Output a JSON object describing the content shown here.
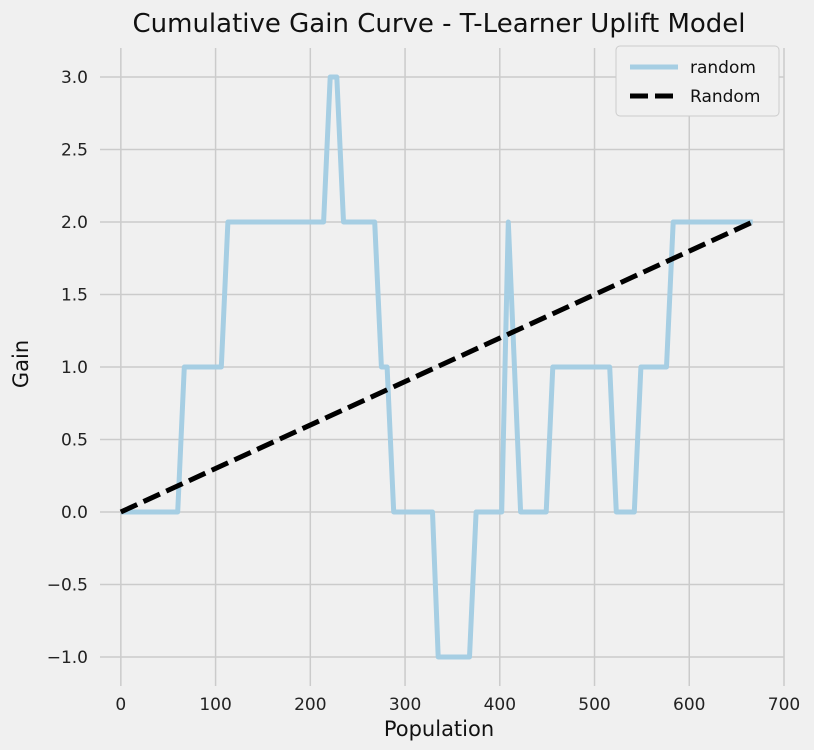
{
  "chart_data": {
    "type": "line",
    "title": "Cumulative Gain Curve - T-Learner Uplift Model",
    "xlabel": "Population",
    "ylabel": "Gain",
    "xlim": [
      -22,
      700
    ],
    "ylim": [
      -1.2,
      3.2
    ],
    "xticks": [
      0,
      100,
      200,
      300,
      400,
      500,
      600,
      700
    ],
    "yticks": [
      -1.0,
      -0.5,
      0.0,
      0.5,
      1.0,
      1.5,
      2.0,
      2.5,
      3.0
    ],
    "xtick_labels": [
      "0",
      "100",
      "200",
      "300",
      "400",
      "500",
      "600",
      "700"
    ],
    "ytick_labels": [
      "−1.0",
      "−0.5",
      "0.0",
      "0.5",
      "1.0",
      "1.5",
      "2.0",
      "2.5",
      "3.0"
    ],
    "grid": true,
    "legend": {
      "position": "top-right"
    },
    "series": [
      {
        "name": "random",
        "color": "#a6cee3",
        "style": "solid",
        "x": [
          0,
          60,
          67,
          106,
          113,
          214,
          221,
          228,
          235,
          268,
          275,
          281,
          288,
          329,
          335,
          368,
          375,
          402,
          409,
          422,
          429,
          449,
          456,
          516,
          523,
          542,
          549,
          576,
          583,
          667
        ],
        "y": [
          0,
          0,
          1,
          1,
          2,
          2,
          3,
          3,
          2,
          2,
          1,
          1,
          0,
          0,
          -1,
          -1,
          0,
          0,
          2,
          0,
          0,
          0,
          1,
          1,
          0,
          0,
          1,
          1,
          2,
          2
        ]
      },
      {
        "name": "Random",
        "color": "#000000",
        "style": "dashed",
        "x": [
          0,
          667
        ],
        "y": [
          0,
          2
        ]
      }
    ]
  }
}
